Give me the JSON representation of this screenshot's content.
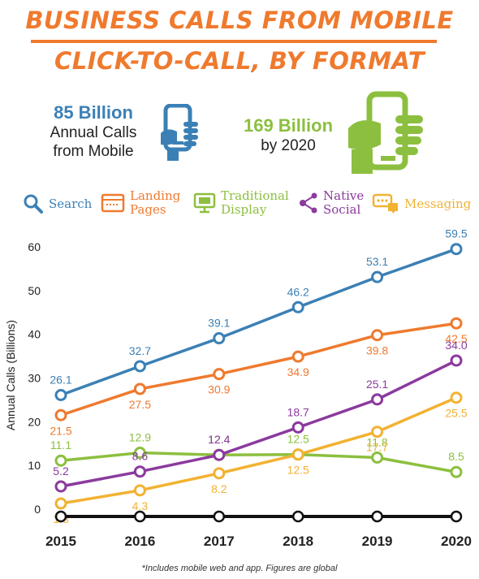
{
  "header": {
    "title_line1": "BUSINESS CALLS FROM MOBILE",
    "title_line2": "CLICK-TO-CALL, BY FORMAT"
  },
  "stats": {
    "stat1_value": "85 Billion",
    "stat1_line1": "Annual Calls",
    "stat1_line2": "from Mobile",
    "stat2_value": "169 Billion",
    "stat2_line1": "by 2020"
  },
  "legend": {
    "search": "Search",
    "landing_line1": "Landing",
    "landing_line2": "Pages",
    "display_line1": "Traditional",
    "display_line2": "Display",
    "social_line1": "Native",
    "social_line2": "Social",
    "messaging": "Messaging"
  },
  "footnote": "*Includes mobile web and app. Figures are global",
  "colors": {
    "orange": "#ef7a2e",
    "blue": "#3b80b5",
    "green": "#8cbf3f",
    "purple": "#8b3a9e",
    "yellow": "#f2b232"
  },
  "icons": {
    "stat1": "phone-in-hand-icon",
    "stat2": "phone-in-hand-icon",
    "search": "magnifier-icon",
    "landing": "browser-window-icon",
    "display": "monitor-icon",
    "social": "share-icon",
    "messaging": "chat-bubble-icon"
  },
  "chart_data": {
    "type": "line",
    "ylabel": "Annual Calls (Billions)",
    "xlabel": "",
    "categories": [
      "2015",
      "2016",
      "2017",
      "2018",
      "2019",
      "2020"
    ],
    "ylim": [
      0,
      60
    ],
    "yticks": [
      0,
      10,
      20,
      30,
      40,
      50,
      60
    ],
    "grid": false,
    "series": [
      {
        "name": "Search",
        "color": "#3b80b5",
        "values": [
          26.1,
          32.7,
          39.1,
          46.2,
          53.1,
          59.5
        ],
        "labels": [
          "26.1",
          "32.7",
          "39.1",
          "46.2",
          "53.1",
          "59.5"
        ],
        "label_pos": "above"
      },
      {
        "name": "Landing Pages",
        "color": "#ef7a2e",
        "values": [
          21.5,
          27.5,
          30.9,
          34.9,
          39.8,
          42.5
        ],
        "labels": [
          "21.5",
          "27.5",
          "30.9",
          "34.9",
          "39.8",
          "42.5"
        ],
        "label_pos": "below"
      },
      {
        "name": "Traditional Display",
        "color": "#8cbf3f",
        "values": [
          11.1,
          12.9,
          12.4,
          12.5,
          11.8,
          8.5
        ],
        "labels": [
          "11.1",
          "12.9",
          "12.4",
          "12.5",
          "11.8",
          "8.5"
        ],
        "label_pos": "above"
      },
      {
        "name": "Native Social",
        "color": "#8b3a9e",
        "values": [
          5.2,
          8.6,
          12.4,
          18.7,
          25.1,
          34.0
        ],
        "labels": [
          "5.2",
          "8.6",
          "12.4",
          "18.7",
          "25.1",
          "34.0"
        ],
        "label_pos": "above"
      },
      {
        "name": "Messaging",
        "color": "#f2b232",
        "values": [
          1.3,
          4.3,
          8.2,
          12.5,
          17.7,
          25.5
        ],
        "labels": [
          "1.3",
          "4.3",
          "8.2",
          "12.5",
          "17.7",
          "25.5"
        ],
        "label_pos": "below"
      }
    ]
  }
}
